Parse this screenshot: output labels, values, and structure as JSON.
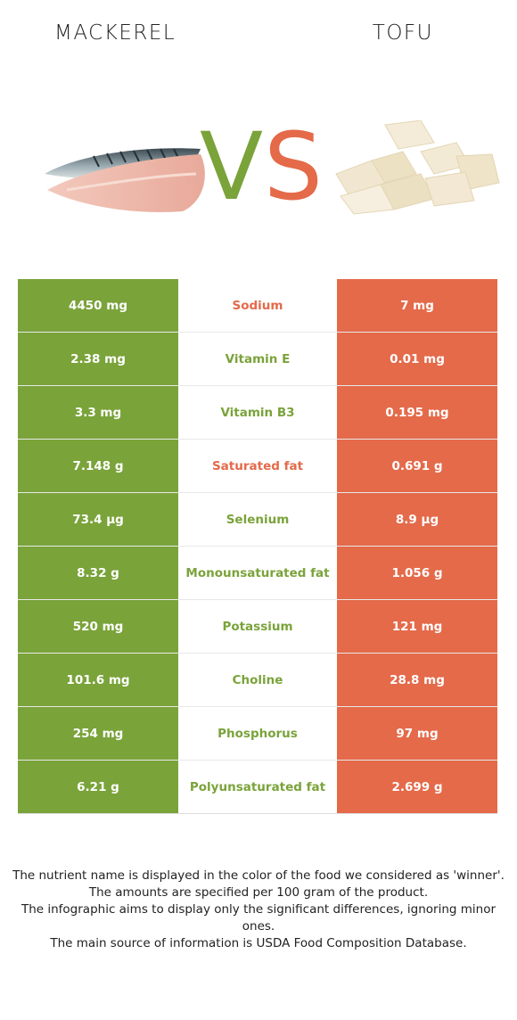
{
  "left_food": "MACKEREL",
  "right_food": "TOFU",
  "vs": {
    "v": "V",
    "s": "S"
  },
  "colors": {
    "left": "#7aa33a",
    "right": "#e46a4a"
  },
  "rows": [
    {
      "left": "4450 mg",
      "nutrient": "Sodium",
      "right": "7 mg",
      "winner": "right"
    },
    {
      "left": "2.38 mg",
      "nutrient": "Vitamin E",
      "right": "0.01 mg",
      "winner": "left"
    },
    {
      "left": "3.3 mg",
      "nutrient": "Vitamin B3",
      "right": "0.195 mg",
      "winner": "left"
    },
    {
      "left": "7.148 g",
      "nutrient": "Saturated fat",
      "right": "0.691 g",
      "winner": "right"
    },
    {
      "left": "73.4 µg",
      "nutrient": "Selenium",
      "right": "8.9 µg",
      "winner": "left"
    },
    {
      "left": "8.32 g",
      "nutrient": "Monounsaturated fat",
      "right": "1.056 g",
      "winner": "left"
    },
    {
      "left": "520 mg",
      "nutrient": "Potassium",
      "right": "121 mg",
      "winner": "left"
    },
    {
      "left": "101.6 mg",
      "nutrient": "Choline",
      "right": "28.8 mg",
      "winner": "left"
    },
    {
      "left": "254 mg",
      "nutrient": "Phosphorus",
      "right": "97 mg",
      "winner": "left"
    },
    {
      "left": "6.21 g",
      "nutrient": "Polyunsaturated fat",
      "right": "2.699 g",
      "winner": "left"
    }
  ],
  "footnote": [
    "The nutrient name is displayed in the color of the food we considered as 'winner'.",
    "The amounts are specified per 100 gram of the product.",
    "The infographic aims to display only the significant differences, ignoring minor ones.",
    "The main source of information is USDA Food Composition Database."
  ]
}
